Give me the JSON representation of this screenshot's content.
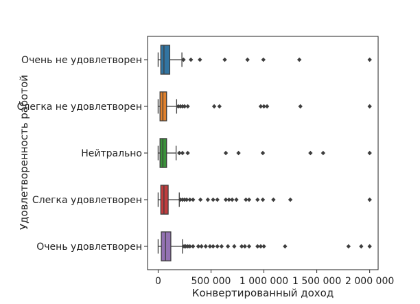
{
  "chart_data": {
    "type": "boxplot",
    "orientation": "horizontal",
    "title": "",
    "xlabel": "Конвертированный доход",
    "ylabel": "Удовлетворенность работой",
    "xlim": [
      -100000,
      2080000
    ],
    "xticks": [
      0,
      500000,
      1000000,
      1500000,
      2000000
    ],
    "xtick_labels": [
      "0",
      "500 000",
      "1 000 000",
      "1 500 000",
      "2 000 000"
    ],
    "grid": false,
    "series": [
      {
        "category": "Очень не удовлетворен",
        "color": "#3274a1",
        "whisker_low": 0,
        "q1": 25000,
        "median": 55000,
        "q3": 110000,
        "whisker_high": 225000,
        "outliers": [
          240000,
          310000,
          395000,
          630000,
          845000,
          995000,
          1335000,
          2000000
        ]
      },
      {
        "category": "Слегка не удовлетворен",
        "color": "#e1812c",
        "whisker_low": 0,
        "q1": 18000,
        "median": 45000,
        "q3": 80000,
        "whisker_high": 175000,
        "outliers": [
          190000,
          210000,
          230000,
          250000,
          280000,
          530000,
          580000,
          970000,
          1000000,
          1030000,
          1345000,
          2000000
        ]
      },
      {
        "category": "Нейтрально",
        "color": "#3a923a",
        "whisker_low": 0,
        "q1": 18000,
        "median": 45000,
        "q3": 80000,
        "whisker_high": 170000,
        "outliers": [
          200000,
          230000,
          280000,
          640000,
          760000,
          990000,
          1440000,
          1560000,
          2000000
        ]
      },
      {
        "category": "Слегка удовлетворен",
        "color": "#c03d3e",
        "whisker_low": 0,
        "q1": 25000,
        "median": 55000,
        "q3": 95000,
        "whisker_high": 200000,
        "outliers": [
          210000,
          230000,
          250000,
          270000,
          300000,
          330000,
          400000,
          470000,
          520000,
          560000,
          640000,
          670000,
          700000,
          740000,
          830000,
          860000,
          940000,
          990000,
          1090000,
          1250000,
          2000000
        ]
      },
      {
        "category": "Очень удовлетворен",
        "color": "#9372b2",
        "whisker_low": 0,
        "q1": 30000,
        "median": 70000,
        "q3": 120000,
        "whisker_high": 230000,
        "outliers": [
          245000,
          260000,
          280000,
          300000,
          330000,
          380000,
          410000,
          450000,
          490000,
          520000,
          560000,
          600000,
          660000,
          720000,
          790000,
          820000,
          860000,
          940000,
          970000,
          1000000,
          1200000,
          1800000,
          1920000,
          2000000
        ]
      }
    ]
  }
}
